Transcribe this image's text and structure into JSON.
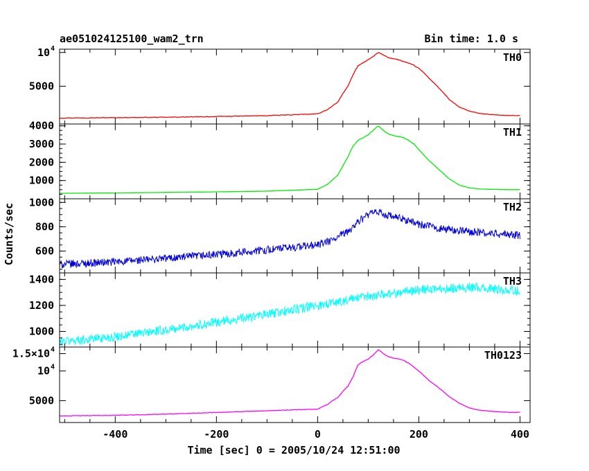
{
  "header": {
    "title": "ae051024125100_wam2_trn",
    "bin_time": "Bin time: 1.0 s"
  },
  "axes": {
    "xlabel": "Time [sec] 0 = 2005/10/24 12:51:00",
    "ylabel": "Counts/sec",
    "xlim": [
      -510,
      420
    ],
    "xticks": [
      -400,
      -200,
      0,
      200,
      400
    ]
  },
  "chart_data": [
    {
      "type": "line",
      "name": "TH0",
      "color": "#ff0000",
      "ylog": true,
      "ylim": [
        2300,
        10700
      ],
      "yticks": [
        {
          "v": 5000,
          "label": "5000"
        },
        {
          "v": 10000,
          "label": "10",
          "exp": "4"
        }
      ],
      "x": [
        -510,
        -400,
        -300,
        -200,
        -100,
        0,
        20,
        40,
        60,
        70,
        80,
        90,
        100,
        110,
        120,
        130,
        140,
        150,
        160,
        170,
        180,
        190,
        200,
        210,
        220,
        240,
        260,
        280,
        300,
        320,
        340,
        360,
        380,
        400
      ],
      "y": [
        2600,
        2620,
        2640,
        2680,
        2730,
        2830,
        3100,
        3600,
        5000,
        6300,
        7600,
        8100,
        8600,
        9200,
        10000,
        9500,
        9000,
        8800,
        8600,
        8300,
        8000,
        7700,
        7200,
        6600,
        5900,
        4800,
        3800,
        3250,
        3000,
        2850,
        2800,
        2760,
        2740,
        2730
      ]
    },
    {
      "type": "line",
      "name": "TH1",
      "color": "#00ee00",
      "ylog": false,
      "ylim": [
        0,
        4100
      ],
      "yticks": [
        {
          "v": 1000,
          "label": "1000"
        },
        {
          "v": 2000,
          "label": "2000"
        },
        {
          "v": 3000,
          "label": "3000"
        },
        {
          "v": 4000,
          "label": "4000"
        }
      ],
      "x": [
        -510,
        -400,
        -300,
        -200,
        -100,
        0,
        20,
        40,
        60,
        70,
        80,
        90,
        100,
        110,
        120,
        130,
        140,
        150,
        160,
        170,
        180,
        190,
        200,
        210,
        220,
        240,
        260,
        280,
        300,
        320,
        340,
        360,
        380,
        400
      ],
      "y": [
        300,
        320,
        350,
        380,
        420,
        520,
        800,
        1300,
        2300,
        2900,
        3200,
        3350,
        3500,
        3750,
        4000,
        3750,
        3550,
        3450,
        3400,
        3350,
        3200,
        3000,
        2700,
        2400,
        2100,
        1600,
        1100,
        750,
        600,
        540,
        520,
        510,
        500,
        500
      ]
    },
    {
      "type": "line",
      "name": "TH2",
      "color": "#0000dd",
      "ylog": false,
      "ylim": [
        420,
        1030
      ],
      "yticks": [
        {
          "v": 600,
          "label": "600"
        },
        {
          "v": 800,
          "label": "800"
        },
        {
          "v": 1000,
          "label": "1000"
        }
      ],
      "x": [
        -510,
        -400,
        -300,
        -200,
        -100,
        -50,
        0,
        30,
        60,
        80,
        100,
        120,
        140,
        160,
        180,
        200,
        250,
        300,
        350,
        400
      ],
      "y": [
        490,
        510,
        540,
        570,
        610,
        630,
        650,
        690,
        760,
        840,
        900,
        920,
        890,
        870,
        850,
        820,
        780,
        760,
        740,
        730
      ],
      "noise": 25
    },
    {
      "type": "line",
      "name": "TH3",
      "color": "#00ffff",
      "ylog": false,
      "ylim": [
        880,
        1450
      ],
      "yticks": [
        {
          "v": 1000,
          "label": "1000"
        },
        {
          "v": 1200,
          "label": "1200"
        },
        {
          "v": 1400,
          "label": "1400"
        }
      ],
      "x": [
        -510,
        -400,
        -300,
        -200,
        -100,
        0,
        100,
        200,
        300,
        400
      ],
      "y": [
        920,
        960,
        1010,
        1070,
        1130,
        1200,
        1270,
        1320,
        1340,
        1310
      ],
      "noise": 28
    },
    {
      "type": "line",
      "name": "TH0123",
      "color": "#ff00ff",
      "ylog": true,
      "ylim": [
        3000,
        17500
      ],
      "yticks": [
        {
          "v": 5000,
          "label": "5000"
        },
        {
          "v": 10000,
          "label": "10",
          "exp": "4"
        },
        {
          "v": 15000,
          "label": "1.5×10",
          "exp": "4"
        }
      ],
      "x": [
        -510,
        -400,
        -300,
        -200,
        -100,
        0,
        20,
        40,
        60,
        70,
        80,
        90,
        100,
        110,
        120,
        130,
        140,
        150,
        160,
        170,
        180,
        190,
        200,
        210,
        220,
        240,
        260,
        280,
        300,
        320,
        340,
        360,
        380,
        400
      ],
      "y": [
        3500,
        3550,
        3650,
        3800,
        3950,
        4100,
        4600,
        5400,
        7000,
        8700,
        11500,
        12500,
        13200,
        14500,
        16500,
        15000,
        14000,
        13500,
        13300,
        12800,
        12000,
        11000,
        10000,
        9000,
        8000,
        6700,
        5500,
        4700,
        4200,
        4000,
        3900,
        3850,
        3800,
        3800
      ]
    }
  ]
}
